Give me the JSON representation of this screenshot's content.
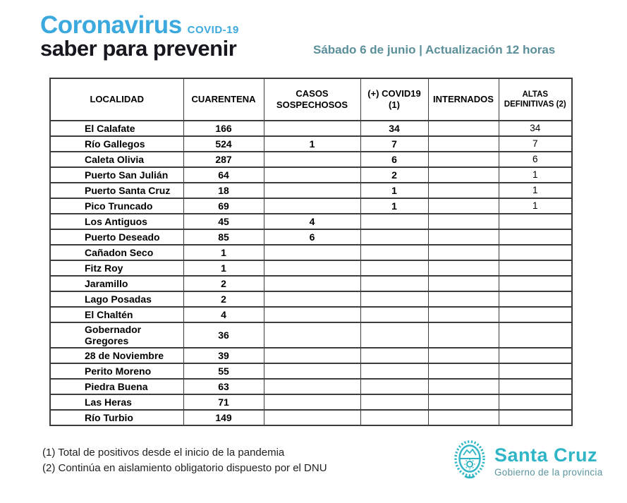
{
  "header": {
    "brand_title": "Coronavirus",
    "brand_sub": "COVID-19",
    "brand_tagline": "saber para prevenir",
    "update_text": "Sábado 6 de junio | Actualización 12 horas"
  },
  "table": {
    "columns": [
      "LOCALIDAD",
      "CUARENTENA",
      "CASOS SOSPECHOSOS",
      "(+) COVID19 (1)",
      "INTERNADOS",
      "ALTAS DEFINITIVAS (2)"
    ],
    "rows": [
      [
        "El Calafate",
        "166",
        "",
        "34",
        "",
        "34"
      ],
      [
        "Río Gallegos",
        "524",
        "1",
        "7",
        "",
        "7"
      ],
      [
        "Caleta Olivia",
        "287",
        "",
        "6",
        "",
        "6"
      ],
      [
        "Puerto San Julián",
        "64",
        "",
        "2",
        "",
        "1"
      ],
      [
        "Puerto Santa Cruz",
        "18",
        "",
        "1",
        "",
        "1"
      ],
      [
        "Pico Truncado",
        "69",
        "",
        "1",
        "",
        "1"
      ],
      [
        "Los Antiguos",
        "45",
        "4",
        "",
        "",
        ""
      ],
      [
        "Puerto Deseado",
        "85",
        "6",
        "",
        "",
        ""
      ],
      [
        "Cañadon Seco",
        "1",
        "",
        "",
        "",
        ""
      ],
      [
        "Fitz Roy",
        "1",
        "",
        "",
        "",
        ""
      ],
      [
        "Jaramillo",
        "2",
        "",
        "",
        "",
        ""
      ],
      [
        "Lago Posadas",
        "2",
        "",
        "",
        "",
        ""
      ],
      [
        "El Chaltén",
        "4",
        "",
        "",
        "",
        ""
      ],
      [
        "Gobernador Gregores",
        "36",
        "",
        "",
        "",
        ""
      ],
      [
        "28 de Noviembre",
        "39",
        "",
        "",
        "",
        ""
      ],
      [
        "Perito Moreno",
        "55",
        "",
        "",
        "",
        ""
      ],
      [
        "Piedra Buena",
        "63",
        "",
        "",
        "",
        ""
      ],
      [
        "Las Heras",
        "71",
        "",
        "",
        "",
        ""
      ],
      [
        "Río Turbio",
        "149",
        "",
        "",
        "",
        ""
      ]
    ]
  },
  "footnotes": {
    "note1": "(1) Total de positivos desde el inicio de la pandemia",
    "note2": "(2) Continúa en aislamiento obligatorio dispuesto por el DNU"
  },
  "logo": {
    "name": "Santa Cruz",
    "subtitle": "Gobierno de la provincia"
  },
  "colors": {
    "brand_blue": "#3ba9de",
    "brand_dark": "#17171f",
    "update_teal": "#5b8f99",
    "table_border": "#3d3d3d",
    "logo_teal": "#2fb5c6",
    "logo_sub_teal": "#5c95a0"
  }
}
